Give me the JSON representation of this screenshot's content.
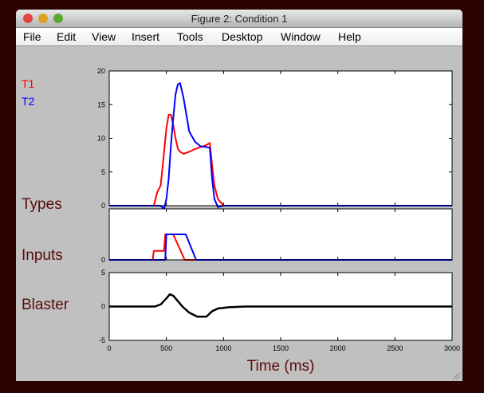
{
  "window": {
    "title": "Figure 2: Condition 1",
    "menu": [
      "File",
      "Edit",
      "View",
      "Insert",
      "Tools",
      "Desktop",
      "Window",
      "Help"
    ]
  },
  "chart_data": [
    {
      "type": "line",
      "ylabel": "Types",
      "x": [
        0,
        390,
        420,
        450,
        480,
        500,
        520,
        540,
        560,
        580,
        600,
        620,
        650,
        700,
        750,
        800,
        850,
        880,
        900,
        920,
        950,
        1000,
        3000
      ],
      "series": [
        {
          "name": "T1",
          "color": "#ff0000",
          "values": [
            0,
            0,
            2,
            3,
            8,
            11.5,
            13.5,
            13.5,
            12,
            10,
            8.5,
            8,
            7.7,
            8,
            8.4,
            8.7,
            9,
            9.3,
            6,
            3,
            1,
            0,
            0
          ]
        },
        {
          "name": "T2",
          "color": "#0000ff",
          "values": [
            0,
            0,
            0,
            0,
            -0.5,
            1,
            4,
            9,
            13,
            16.5,
            18,
            18.2,
            16,
            11,
            9.5,
            8.8,
            8.7,
            8.6,
            4,
            1,
            -0.2,
            0,
            0
          ]
        }
      ],
      "ylim": [
        0,
        20
      ],
      "yticks": [
        0,
        5,
        10,
        15,
        20
      ]
    },
    {
      "type": "line",
      "ylabel": "Inputs",
      "x": [
        0,
        380,
        390,
        480,
        490,
        500,
        560,
        660,
        670,
        760,
        3000
      ],
      "series": [
        {
          "color": "#ff0000",
          "values": [
            0,
            0,
            0.35,
            0.35,
            1,
            1,
            1,
            0,
            0,
            0,
            0
          ]
        },
        {
          "color": "#0000ff",
          "values": [
            0,
            0,
            0,
            0,
            0,
            1,
            1,
            1,
            1,
            0,
            0
          ]
        }
      ],
      "ylim": [
        0,
        2
      ],
      "yticks": [
        0
      ]
    },
    {
      "type": "line",
      "ylabel": "Blaster",
      "xlabel": "Time (ms)",
      "x": [
        0,
        400,
        450,
        500,
        530,
        560,
        600,
        640,
        700,
        770,
        850,
        900,
        950,
        1050,
        1200,
        3000
      ],
      "series": [
        {
          "color": "#000000",
          "values": [
            0,
            0,
            0.3,
            1.2,
            1.8,
            1.6,
            0.8,
            0,
            -0.9,
            -1.5,
            -1.5,
            -0.7,
            -0.3,
            -0.1,
            0,
            0
          ]
        }
      ],
      "ylim": [
        -5,
        5
      ],
      "yticks": [
        -5,
        0,
        5
      ],
      "xlim": [
        0,
        3000
      ],
      "xticks": [
        0,
        500,
        1000,
        1500,
        2000,
        2500,
        3000
      ]
    }
  ]
}
